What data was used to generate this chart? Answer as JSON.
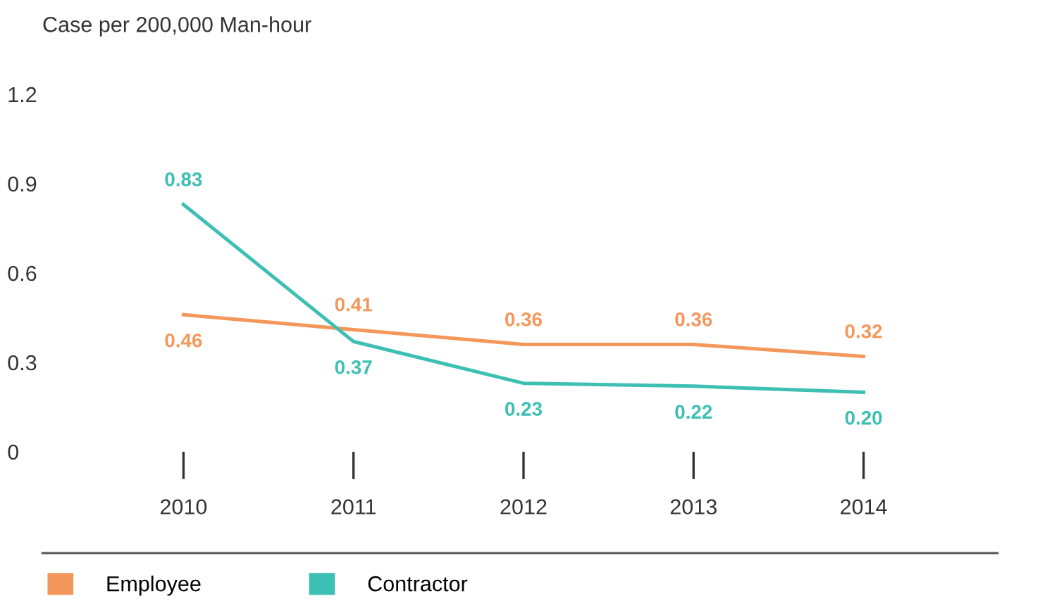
{
  "chart_data": {
    "type": "line",
    "ylabel": "Case per 200,000 Man-hour",
    "categories": [
      "2010",
      "2011",
      "2012",
      "2013",
      "2014"
    ],
    "series": [
      {
        "name": "Employee",
        "color": "#f4975a",
        "values": [
          0.46,
          0.41,
          0.36,
          0.36,
          0.32
        ],
        "value_labels": [
          "0.46",
          "0.41",
          "0.36",
          "0.36",
          "0.32"
        ]
      },
      {
        "name": "Contractor",
        "color": "#3dbfb4",
        "values": [
          0.83,
          0.37,
          0.23,
          0.22,
          0.2
        ],
        "value_labels": [
          "0.83",
          "0.37",
          "0.23",
          "0.22",
          "0.20"
        ]
      }
    ],
    "ylim": [
      0,
      1.2
    ],
    "yticks": [
      0,
      0.3,
      0.6,
      0.9,
      1.2
    ],
    "grid": false,
    "legend": "bottom left",
    "marker": "none",
    "line_style": "solid"
  }
}
